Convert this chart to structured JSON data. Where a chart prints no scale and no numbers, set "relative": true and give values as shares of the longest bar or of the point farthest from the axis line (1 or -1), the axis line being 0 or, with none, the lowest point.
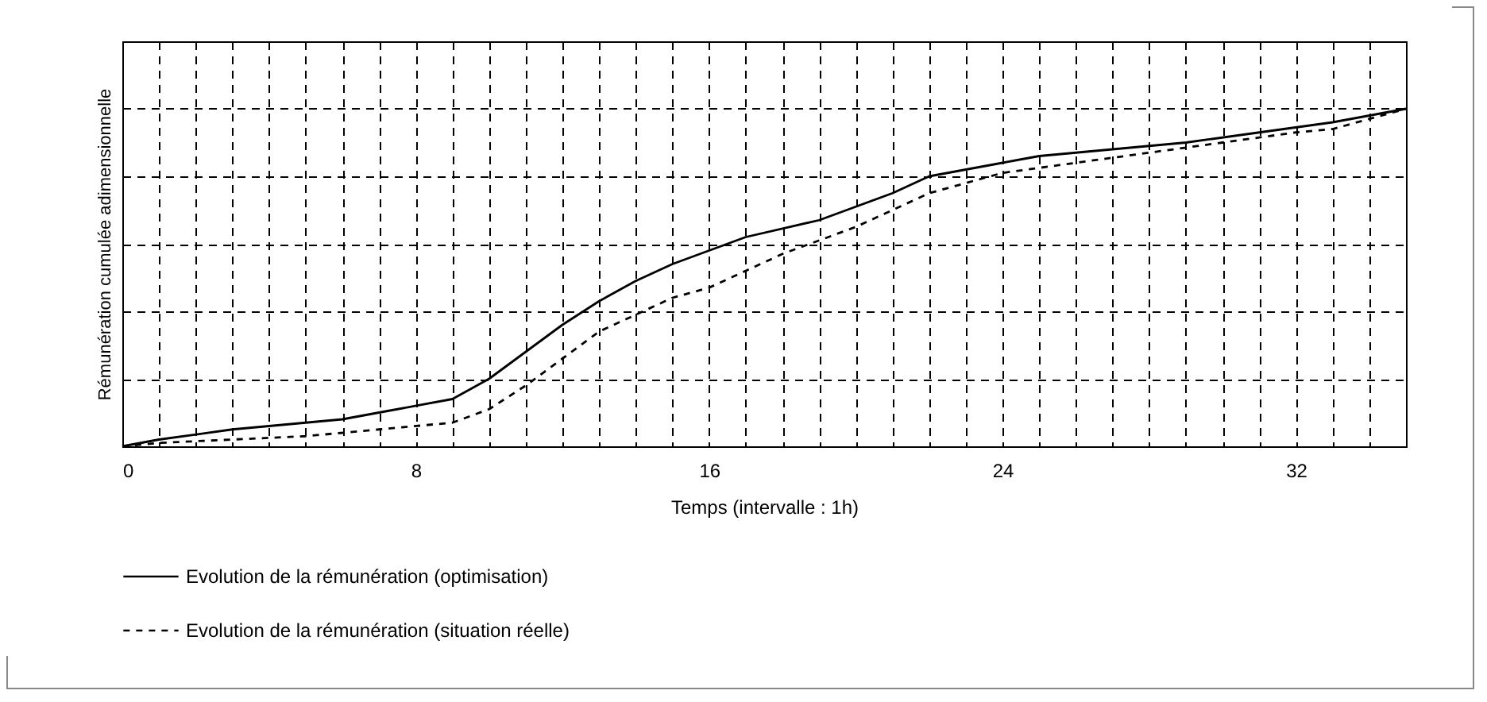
{
  "chart_data": {
    "type": "line",
    "relative": true,
    "xlabel": "Temps (intervalle : 1h)",
    "ylabel": "Rémunération cumulée adimensionnelle",
    "xlim": [
      0,
      35
    ],
    "xticks": [
      0,
      8,
      16,
      24,
      32
    ],
    "grid": true,
    "legend": "bottom",
    "series": [
      {
        "name": "Evolution de la rémunération (optimisation)",
        "color": "#000000",
        "line_style": "solid",
        "x": [
          0,
          1,
          3,
          5,
          6,
          7,
          9,
          10,
          11,
          12,
          13,
          14,
          15,
          16,
          17,
          19,
          20,
          21,
          22,
          23,
          24,
          25,
          27,
          29,
          31,
          33,
          35
        ],
        "values": [
          0,
          0.02,
          0.05,
          0.07,
          0.08,
          0.1,
          0.14,
          0.2,
          0.28,
          0.36,
          0.43,
          0.49,
          0.54,
          0.58,
          0.62,
          0.67,
          0.71,
          0.75,
          0.8,
          0.82,
          0.84,
          0.86,
          0.88,
          0.9,
          0.93,
          0.96,
          1
        ]
      },
      {
        "name": "Evolution de la rémunération (situation réelle)",
        "color": "#000000",
        "line_style": "dashed",
        "x": [
          0,
          1,
          3,
          5,
          7,
          9,
          10,
          11,
          12,
          13,
          14,
          15,
          16,
          17,
          18,
          19,
          20,
          21,
          22,
          23,
          24,
          26,
          28,
          30,
          32,
          33,
          35
        ],
        "values": [
          0,
          0.01,
          0.02,
          0.03,
          0.05,
          0.07,
          0.11,
          0.18,
          0.26,
          0.34,
          0.39,
          0.44,
          0.47,
          0.52,
          0.57,
          0.61,
          0.65,
          0.7,
          0.75,
          0.78,
          0.81,
          0.84,
          0.87,
          0.9,
          0.93,
          0.94,
          1
        ]
      }
    ]
  }
}
